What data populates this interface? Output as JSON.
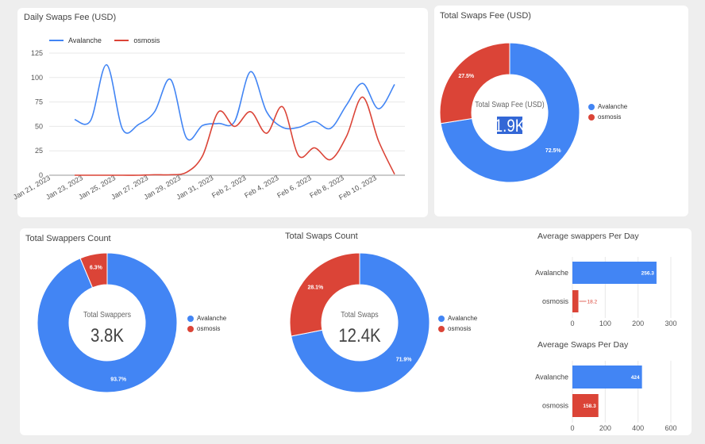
{
  "colors": {
    "avalanche": "#4285f4",
    "osmosis": "#db4437",
    "grid": "#e8e8e8",
    "axis": "#777777"
  },
  "daily_fee": {
    "title": "Daily Swaps Fee (USD)",
    "chart_data": {
      "type": "line",
      "title": "Daily Swaps Fee (USD)",
      "ylim": [
        0,
        125
      ],
      "yticks": [
        "0",
        "25",
        "50",
        "75",
        "100",
        "125"
      ],
      "x_tick_labels": [
        "Jan 21, 2023",
        "Jan 23, 2023",
        "Jan 25, 2023",
        "Jan 27, 2023",
        "Jan 29, 2023",
        "Jan 31, 2023",
        "Feb 2, 2023",
        "Feb 4, 2023",
        "Feb 6, 2023",
        "Feb 8, 2023",
        "Feb 10, 2023"
      ],
      "series": [
        {
          "name": "Avalanche",
          "values": [
            57,
            56,
            113,
            47,
            52,
            65,
            98,
            38,
            51,
            53,
            55,
            106,
            65,
            49,
            49,
            55,
            48,
            72,
            94,
            68,
            93
          ]
        },
        {
          "name": "osmosis",
          "values": [
            0,
            0,
            0,
            0,
            0,
            0.5,
            0.5,
            3,
            20,
            65,
            50,
            65,
            43,
            70,
            20,
            28,
            16,
            40,
            80,
            35,
            1
          ]
        }
      ]
    }
  },
  "total_fee": {
    "title": "Total Swaps Fee (USD)",
    "center_label": "Total Swap Fee (USD)",
    "center_value": "1.9K",
    "legend": [
      "Avalanche",
      "osmosis"
    ],
    "chart_data": {
      "type": "pie",
      "labels": [
        "Avalanche",
        "osmosis"
      ],
      "values": [
        72.5,
        27.5
      ],
      "slice_labels": [
        "72.5%",
        "27.5%"
      ]
    }
  },
  "swappers": {
    "title": "Total Swappers Count",
    "center_label": "Total Swappers",
    "center_value": "3.8K",
    "legend": [
      "Avalanche",
      "osmosis"
    ],
    "chart_data": {
      "type": "pie",
      "labels": [
        "Avalanche",
        "osmosis"
      ],
      "values": [
        93.7,
        6.3
      ],
      "slice_labels": [
        "93.7%",
        "6.3%"
      ]
    }
  },
  "swaps": {
    "title": "Total Swaps Count",
    "center_label": "Total Swaps",
    "center_value": "12.4K",
    "legend": [
      "Avalanche",
      "osmosis"
    ],
    "chart_data": {
      "type": "pie",
      "labels": [
        "Avalanche",
        "osmosis"
      ],
      "values": [
        71.9,
        28.1
      ],
      "slice_labels": [
        "71.9%",
        "28.1%"
      ]
    }
  },
  "avg_swappers": {
    "title": "Average swappers Per Day",
    "chart_data": {
      "type": "bar",
      "orientation": "horizontal",
      "categories": [
        "Avalanche",
        "osmosis"
      ],
      "values": [
        256.3,
        18.2
      ],
      "value_labels": [
        "256.3",
        "18.2"
      ],
      "xlim": [
        0,
        300
      ],
      "xticks": [
        "0",
        "100",
        "200",
        "300"
      ]
    }
  },
  "avg_swaps": {
    "title": "Average Swaps Per Day",
    "chart_data": {
      "type": "bar",
      "orientation": "horizontal",
      "categories": [
        "Avalanche",
        "osmosis"
      ],
      "values": [
        424,
        158.3
      ],
      "value_labels": [
        "424",
        "158.3"
      ],
      "xlim": [
        0,
        600
      ],
      "xticks": [
        "0",
        "200",
        "400",
        "600"
      ]
    }
  }
}
